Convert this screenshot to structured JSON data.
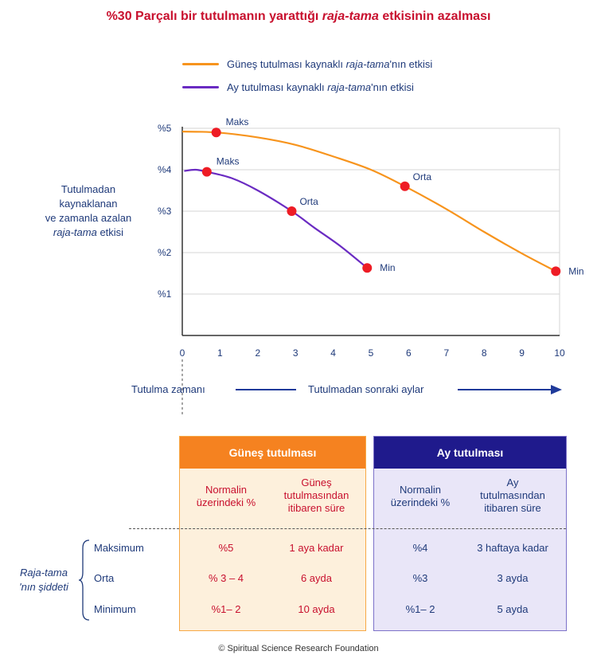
{
  "title": {
    "prefix": "%30 Parçalı bir tutulmanın yarattığı ",
    "emph": "raja-tama",
    "suffix": " etkisinin azalması"
  },
  "legend": {
    "sun": {
      "prefix": "Güneş tutulması kaynaklı ",
      "emph": "raja-tama",
      "suffix": "'nın etkisi",
      "color": "#f7941d"
    },
    "moon": {
      "prefix": "Ay tutulması kaynaklı ",
      "emph": "raja-tama",
      "suffix": "'nın etkisi",
      "color": "#6a2bc2"
    }
  },
  "ylabel": {
    "line1": "Tutulmadan",
    "line2": "kaynaklanan",
    "line3": "ve zamanla azalan",
    "line4_emph": "raja-tama",
    "line4_suffix": " etkisi"
  },
  "chart_data": {
    "type": "line",
    "title": "%30 Parçalı bir tutulmanın yarattığı raja-tama etkisinin azalması",
    "xlabel": "Tutulmadan sonraki aylar",
    "xlim": [
      0,
      10
    ],
    "ylim": [
      0,
      5
    ],
    "x_ticks": [
      "0",
      "1",
      "2",
      "3",
      "4",
      "5",
      "6",
      "7",
      "8",
      "9",
      "10"
    ],
    "y_ticks": [
      {
        "value": 5,
        "label": "%5"
      },
      {
        "value": 4,
        "label": "%4"
      },
      {
        "value": 3,
        "label": "%3"
      },
      {
        "value": 2,
        "label": "%2"
      },
      {
        "value": 1,
        "label": "%1"
      }
    ],
    "series": [
      {
        "name": "Güneş tutulması kaynaklı raja-tama'nın etkisi",
        "color": "#f7941d",
        "curve": [
          [
            0,
            4.92
          ],
          [
            0.9,
            4.9
          ],
          [
            2,
            4.78
          ],
          [
            3,
            4.6
          ],
          [
            4,
            4.32
          ],
          [
            5,
            4.0
          ],
          [
            5.9,
            3.6
          ],
          [
            7,
            3.05
          ],
          [
            8,
            2.5
          ],
          [
            9,
            1.98
          ],
          [
            9.9,
            1.55
          ]
        ],
        "points": [
          {
            "x": 0.9,
            "y": 4.9,
            "label": "Maks"
          },
          {
            "x": 5.9,
            "y": 3.6,
            "label": "Orta"
          },
          {
            "x": 9.9,
            "y": 1.55,
            "label": "Min"
          }
        ]
      },
      {
        "name": "Ay tutulması kaynaklı raja-tama'nın etkisi",
        "color": "#6a2bc2",
        "curve": [
          [
            0.05,
            3.97
          ],
          [
            0.35,
            4.0
          ],
          [
            0.65,
            3.95
          ],
          [
            1.3,
            3.8
          ],
          [
            2,
            3.5
          ],
          [
            2.9,
            3.0
          ],
          [
            3.5,
            2.6
          ],
          [
            4.2,
            2.15
          ],
          [
            4.9,
            1.63
          ]
        ],
        "points": [
          {
            "x": 0.65,
            "y": 3.95,
            "label": "Maks"
          },
          {
            "x": 2.9,
            "y": 3.0,
            "label": "Orta"
          },
          {
            "x": 4.9,
            "y": 1.63,
            "label": "Min"
          }
        ]
      }
    ]
  },
  "axis_notes": {
    "eclipse_time": "Tutulma zamanı",
    "months_after": "Tutulmadan sonraki aylar"
  },
  "table": {
    "sun": {
      "header": "Güneş tutulması",
      "col1": [
        "Normalin",
        "üzerindeki %"
      ],
      "col2": [
        "Güneş",
        "tutulmasından",
        "itibaren süre"
      ],
      "rows": [
        [
          "%5",
          "1 aya kadar"
        ],
        [
          "% 3 – 4",
          "6 ayda"
        ],
        [
          "%1– 2",
          "10 ayda"
        ]
      ]
    },
    "moon": {
      "header": "Ay tutulması",
      "col1": [
        "Normalin",
        "üzerindeki %"
      ],
      "col2": [
        "Ay",
        "tutulmasından",
        "itibaren süre"
      ],
      "rows": [
        [
          "%4",
          "3 haftaya kadar"
        ],
        [
          "%3",
          "3 ayda"
        ],
        [
          "%1– 2",
          "5 ayda"
        ]
      ]
    },
    "row_labels": [
      "Maksimum",
      "Orta",
      "Minimum"
    ],
    "severity": {
      "emph": "Raja-tama",
      "suffix": "'nın şiddeti"
    }
  },
  "copyright": "© Spiritual Science Research Foundation"
}
